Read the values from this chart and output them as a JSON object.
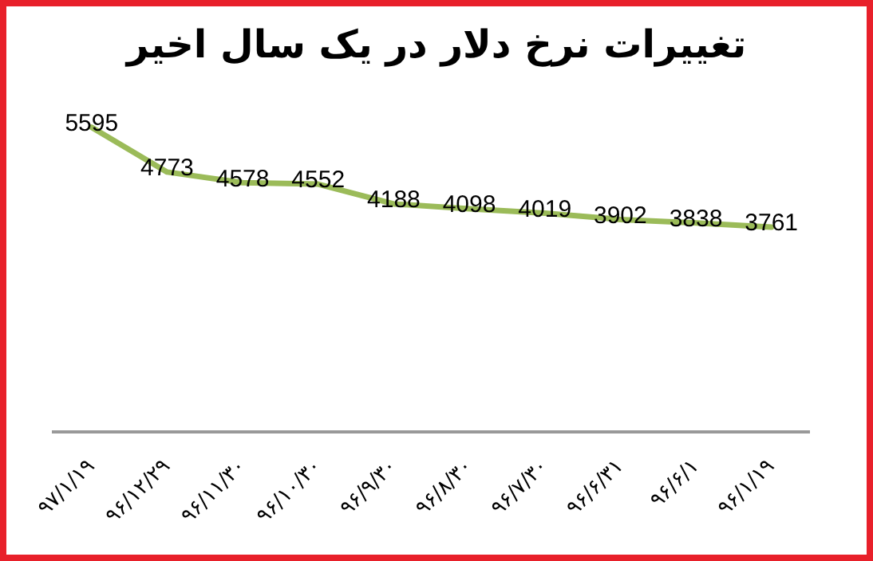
{
  "chart_data": {
    "type": "line",
    "title": "تغییرات نرخ دلار در یک سال اخیر",
    "categories": [
      "۹۷/۱/۱۹",
      "۹۶/۱۲/۲۹",
      "۹۶/۱۱/۳۰",
      "۹۶/۱۰/۳۰",
      "۹۶/۹/۳۰",
      "۹۶/۸/۳۰",
      "۹۶/۷/۳۰",
      "۹۶/۶/۳۱",
      "۹۶/۶/۱",
      "۹۶/۱/۱۹"
    ],
    "series": [
      {
        "color": "#9bbb59",
        "values": [
          5595,
          4773,
          4578,
          4552,
          4188,
          4098,
          4019,
          3902,
          3838,
          3761
        ]
      }
    ],
    "data_labels": true,
    "marker": "none",
    "line_style": "solid",
    "grid": false,
    "legend": false
  }
}
